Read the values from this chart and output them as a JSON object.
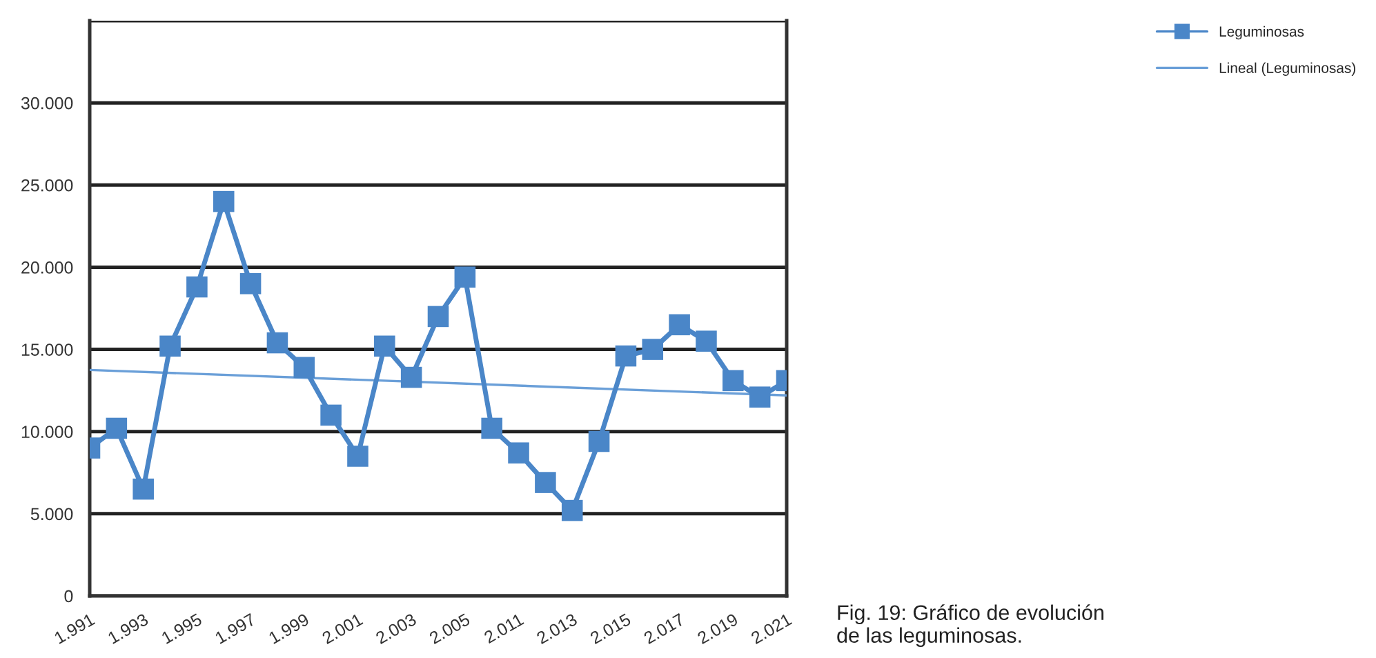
{
  "chart_data": {
    "type": "line",
    "categories": [
      "1.991",
      null,
      "1.993",
      null,
      "1.995",
      null,
      "1.997",
      null,
      "1.999",
      null,
      "2.001",
      null,
      "2.003",
      null,
      "2.005",
      null,
      "2.011",
      null,
      "2.013",
      null,
      "2.015",
      null,
      "2.017",
      null,
      "2.019",
      null,
      "2.021"
    ],
    "series": [
      {
        "name": "Leguminosas",
        "color": "#4a86c8",
        "marker": "square",
        "values": [
          9000,
          10200,
          6500,
          15200,
          18800,
          24000,
          19000,
          15400,
          13900,
          11000,
          8500,
          15200,
          13300,
          17000,
          19400,
          10200,
          8700,
          6900,
          5200,
          9400,
          14600,
          15000,
          16500,
          15500,
          13100,
          12100,
          13100
        ]
      },
      {
        "name": "Lineal (Leguminosas)",
        "color": "#6a9fd8",
        "marker": "none",
        "values": [
          13750,
          null,
          null,
          null,
          null,
          null,
          null,
          null,
          null,
          null,
          null,
          null,
          null,
          null,
          null,
          null,
          null,
          null,
          null,
          null,
          null,
          null,
          null,
          null,
          null,
          null,
          12200
        ]
      }
    ],
    "ylim": [
      0,
      35000
    ],
    "yticks": [
      {
        "value": 0,
        "label": "0"
      },
      {
        "value": 5000,
        "label": "5.000"
      },
      {
        "value": 10000,
        "label": "10.000"
      },
      {
        "value": 15000,
        "label": "15.000"
      },
      {
        "value": 20000,
        "label": "20.000"
      },
      {
        "value": 25000,
        "label": "25.000"
      },
      {
        "value": 30000,
        "label": "30.000"
      },
      {
        "value": 35000,
        "label": null
      }
    ],
    "grid": "y",
    "legend": "top right",
    "annotations": [
      "Fig. 19: Gráfico de evolución\nde las leguminosas."
    ]
  }
}
